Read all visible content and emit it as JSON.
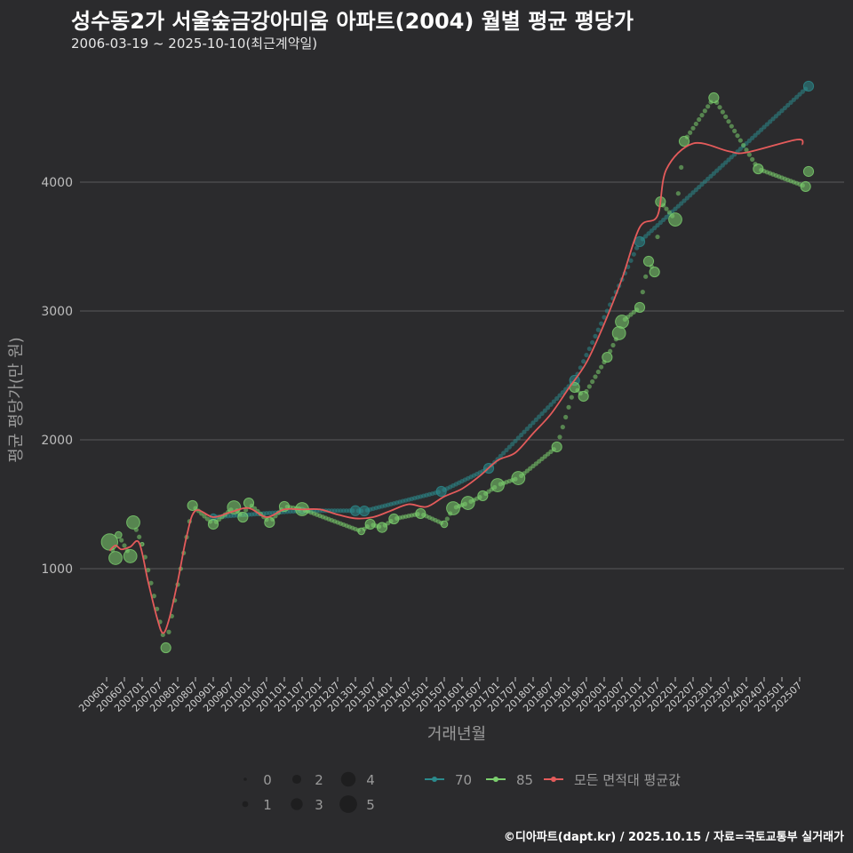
{
  "title": "성수동2가 서울숲금강아미움 아파트(2004) 월별 평균 평당가",
  "subtitle": "2006-03-19 ~ 2025-10-10(최근계약일)",
  "footer": "©디아파트(dapt.kr) / 2025.10.15 / 자료=국토교통부 실거래가",
  "colors": {
    "background": "#2b2b2d",
    "s70": "#2b8a8c",
    "s85": "#7ccf6e",
    "avg": "#e45b5b",
    "grid": "#5a5a5a"
  },
  "chart_data": {
    "type": "scatter",
    "title": "성수동2가 서울숲금강아미움 아파트(2004) 월별 평균 평당가",
    "xlabel": "거래년월",
    "ylabel": "평균 평당가(만 원)",
    "ylim": [
      300,
      4900
    ],
    "yticks": [
      1000,
      2000,
      3000,
      4000
    ],
    "xrange": [
      "2006-01",
      "2025-10"
    ],
    "xticks": [
      "200601",
      "200607",
      "200701",
      "200707",
      "200801",
      "200807",
      "200901",
      "200907",
      "201001",
      "201007",
      "201101",
      "201107",
      "201201",
      "201207",
      "201301",
      "201307",
      "201401",
      "201407",
      "201501",
      "201507",
      "201601",
      "201607",
      "201701",
      "201707",
      "201801",
      "201807",
      "201901",
      "201907",
      "202001",
      "202007",
      "202101",
      "202107",
      "202201",
      "202207",
      "202301",
      "202307",
      "202401",
      "202407",
      "202501",
      "202507"
    ],
    "size_legend": {
      "title": "",
      "values": [
        0,
        1,
        2,
        3,
        4,
        5
      ]
    },
    "legend": [
      "70",
      "85",
      "모든 면적대 평균값"
    ],
    "series": [
      {
        "name": "70",
        "points": [
          [
            "2009-01",
            1400,
            1
          ],
          [
            "2011-07",
            1450,
            1
          ],
          [
            "2013-01",
            1450,
            2
          ],
          [
            "2013-04",
            1448,
            2
          ],
          [
            "2015-06",
            1600,
            2
          ],
          [
            "2016-10",
            1779,
            2
          ],
          [
            "2019-03",
            2462,
            2
          ],
          [
            "2021-01",
            3538,
            2
          ],
          [
            "2025-10",
            4745,
            2
          ]
        ]
      },
      {
        "name": "85",
        "points": [
          [
            "2006-02",
            1207,
            4
          ],
          [
            "2006-04",
            1083,
            3
          ],
          [
            "2006-05",
            1262,
            1
          ],
          [
            "2006-09",
            1097,
            3
          ],
          [
            "2006-10",
            1359,
            3
          ],
          [
            "2007-01",
            1190,
            0
          ],
          [
            "2007-09",
            386,
            2
          ],
          [
            "2008-06",
            1490,
            2
          ],
          [
            "2009-01",
            1345,
            2
          ],
          [
            "2009-08",
            1476,
            3
          ],
          [
            "2009-11",
            1400,
            2
          ],
          [
            "2010-01",
            1510,
            2
          ],
          [
            "2010-08",
            1359,
            2
          ],
          [
            "2011-01",
            1483,
            2
          ],
          [
            "2011-07",
            1462,
            3
          ],
          [
            "2013-03",
            1290,
            1
          ],
          [
            "2013-06",
            1345,
            2
          ],
          [
            "2013-10",
            1320,
            2
          ],
          [
            "2014-02",
            1386,
            2
          ],
          [
            "2014-11",
            1428,
            2
          ],
          [
            "2015-07",
            1345,
            1
          ],
          [
            "2015-10",
            1469,
            3
          ],
          [
            "2016-03",
            1510,
            3
          ],
          [
            "2016-08",
            1566,
            2
          ],
          [
            "2017-01",
            1648,
            3
          ],
          [
            "2017-08",
            1703,
            3
          ],
          [
            "2018-09",
            1945,
            2
          ],
          [
            "2019-03",
            2407,
            2
          ],
          [
            "2019-06",
            2338,
            2
          ],
          [
            "2020-02",
            2641,
            2
          ],
          [
            "2020-06",
            2828,
            3
          ],
          [
            "2020-07",
            2917,
            3
          ],
          [
            "2021-01",
            3028,
            2
          ],
          [
            "2021-04",
            3386,
            2
          ],
          [
            "2021-06",
            3303,
            2
          ],
          [
            "2021-08",
            3848,
            2
          ],
          [
            "2022-01",
            3710,
            3
          ],
          [
            "2022-04",
            4317,
            2
          ],
          [
            "2023-02",
            4655,
            2
          ],
          [
            "2024-05",
            4103,
            2
          ],
          [
            "2025-09",
            3966,
            2
          ],
          [
            "2025-10",
            4083,
            2
          ]
        ]
      },
      {
        "name": "모든 면적대 평균값",
        "points": [
          [
            "2006-02",
            1140
          ],
          [
            "2006-04",
            1180
          ],
          [
            "2006-06",
            1150
          ],
          [
            "2006-09",
            1170
          ],
          [
            "2006-12",
            1200
          ],
          [
            "2007-03",
            900
          ],
          [
            "2007-06",
            620
          ],
          [
            "2007-08",
            500
          ],
          [
            "2007-10",
            600
          ],
          [
            "2008-01",
            900
          ],
          [
            "2008-04",
            1250
          ],
          [
            "2008-07",
            1450
          ],
          [
            "2009-01",
            1400
          ],
          [
            "2009-07",
            1440
          ],
          [
            "2010-01",
            1470
          ],
          [
            "2010-07",
            1400
          ],
          [
            "2011-01",
            1460
          ],
          [
            "2011-07",
            1460
          ],
          [
            "2012-01",
            1460
          ],
          [
            "2012-07",
            1420
          ],
          [
            "2013-01",
            1390
          ],
          [
            "2013-07",
            1400
          ],
          [
            "2014-01",
            1450
          ],
          [
            "2014-07",
            1500
          ],
          [
            "2015-01",
            1480
          ],
          [
            "2015-07",
            1560
          ],
          [
            "2016-01",
            1620
          ],
          [
            "2016-07",
            1720
          ],
          [
            "2017-01",
            1840
          ],
          [
            "2017-07",
            1900
          ],
          [
            "2018-01",
            2050
          ],
          [
            "2018-07",
            2200
          ],
          [
            "2019-01",
            2400
          ],
          [
            "2019-07",
            2600
          ],
          [
            "2020-01",
            2900
          ],
          [
            "2020-07",
            3250
          ],
          [
            "2021-01",
            3650
          ],
          [
            "2021-07",
            3740
          ],
          [
            "2021-10",
            4100
          ],
          [
            "2022-07",
            4300
          ],
          [
            "2023-07",
            4240
          ],
          [
            "2024-01",
            4230
          ],
          [
            "2025-06",
            4330
          ],
          [
            "2025-08",
            4290
          ]
        ]
      }
    ]
  }
}
